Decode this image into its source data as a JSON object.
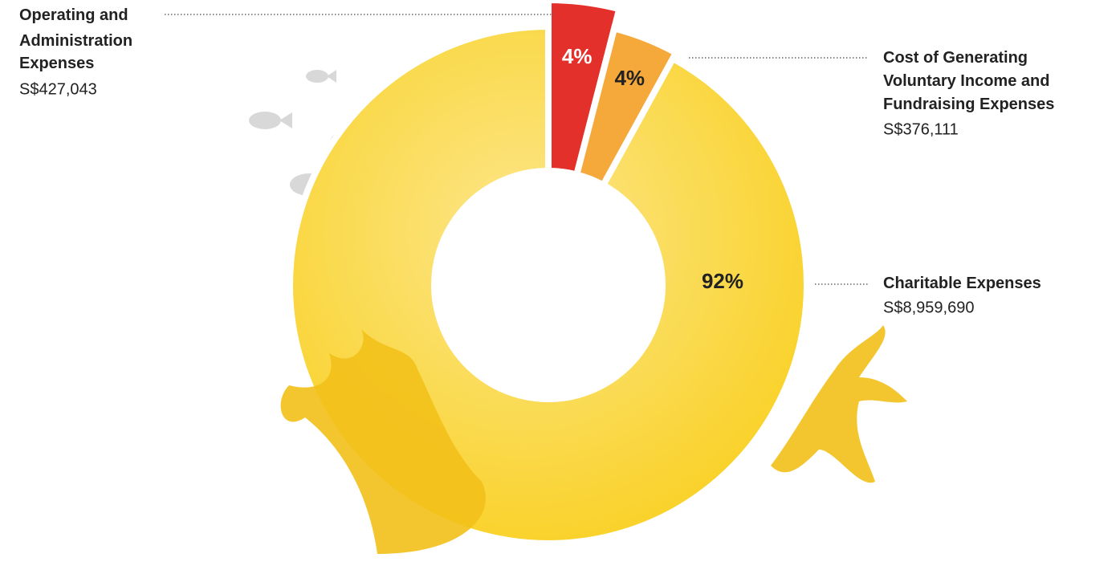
{
  "chart_data": {
    "type": "pie",
    "categories": [
      "Operating and Administration Expenses",
      "Cost of Generating Voluntary Income and Fundraising Expenses",
      "Charitable Expenses"
    ],
    "values": [
      4,
      4,
      92
    ],
    "value_labels": [
      "4%",
      "4%",
      "92%"
    ],
    "amounts": [
      "S$427,043",
      "S$376,111",
      "S$8,959,690"
    ],
    "colors": [
      "#e4302b",
      "#f6a93b",
      "#fbd333"
    ]
  }
}
